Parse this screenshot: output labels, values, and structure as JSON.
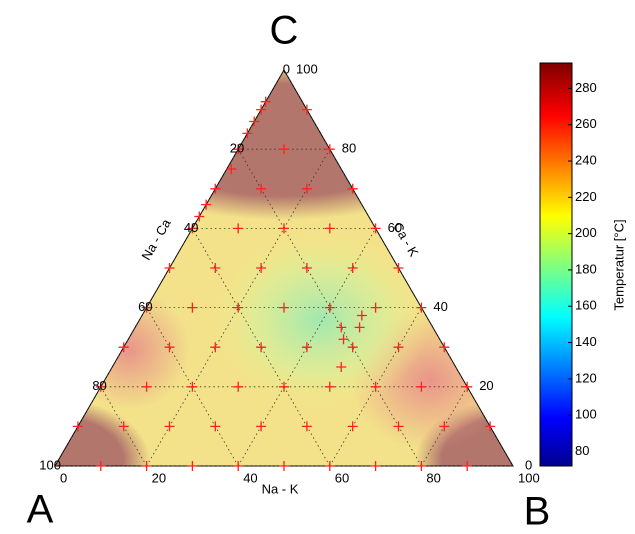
{
  "chart_data": {
    "type": "ternary",
    "corner_labels": {
      "a": "A",
      "b": "B",
      "c": "C"
    },
    "axis_labels": {
      "bottom": "Na - K",
      "left": "Na - Ca",
      "right": "Ca - K"
    },
    "bottom_ticks": [
      0,
      20,
      40,
      60,
      80,
      100
    ],
    "left_ticks": [
      100,
      80,
      60,
      40,
      20,
      0
    ],
    "right_ticks": [
      0,
      20,
      40,
      60,
      80,
      100
    ],
    "points": {
      "color": "#ff2020",
      "b": [
        10,
        20,
        30,
        40,
        50,
        60,
        70,
        80,
        90,
        0,
        10,
        20,
        30,
        40,
        50,
        60,
        70,
        80,
        90,
        0,
        10,
        20,
        30,
        40,
        50,
        60,
        70,
        80,
        0,
        10,
        20,
        30,
        40,
        50,
        60,
        70,
        0,
        10,
        20,
        30,
        40,
        50,
        60,
        0,
        10,
        20,
        30,
        40,
        50,
        0,
        10,
        20,
        30,
        40,
        0,
        10,
        20,
        30,
        0,
        10,
        20,
        0,
        10,
        45,
        47,
        50,
        49,
        48,
        0,
        0,
        0,
        0,
        0,
        1
      ],
      "c": [
        0,
        0,
        0,
        0,
        0,
        0,
        0,
        0,
        0,
        10,
        10,
        10,
        10,
        10,
        10,
        10,
        10,
        10,
        10,
        20,
        20,
        20,
        20,
        20,
        20,
        20,
        20,
        20,
        30,
        30,
        30,
        30,
        30,
        30,
        30,
        30,
        40,
        40,
        40,
        40,
        40,
        40,
        40,
        50,
        50,
        50,
        50,
        50,
        50,
        60,
        60,
        60,
        60,
        60,
        70,
        70,
        70,
        70,
        80,
        80,
        80,
        90,
        90,
        35,
        32,
        25,
        35,
        38,
        92,
        87,
        84,
        66,
        63,
        75
      ]
    },
    "colorbar": {
      "label": "Temperatur [°C]",
      "clim": [
        72,
        294
      ],
      "ticks": [
        80,
        100,
        120,
        140,
        160,
        180,
        200,
        220,
        240,
        260,
        280
      ]
    }
  }
}
